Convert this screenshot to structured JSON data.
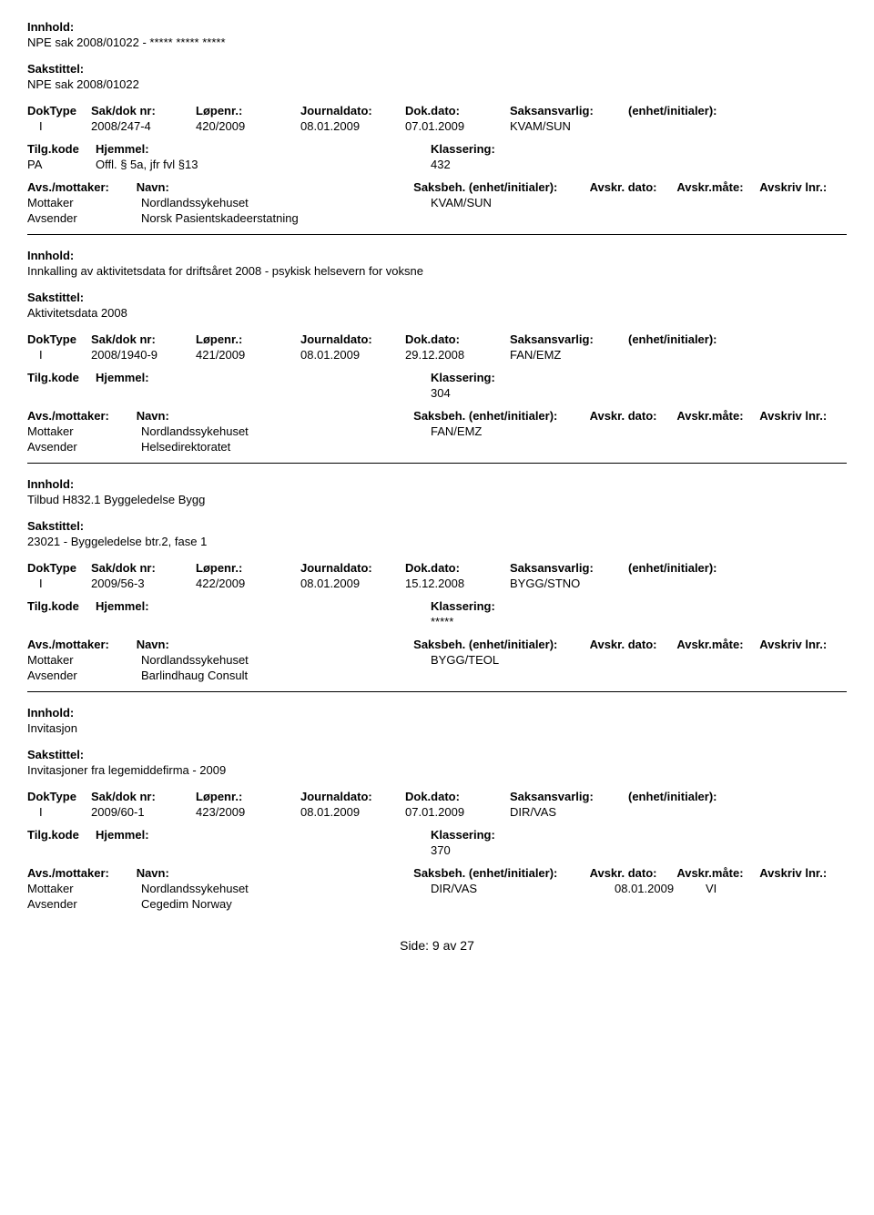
{
  "labels": {
    "innhold": "Innhold:",
    "sakstittel": "Sakstittel:",
    "doktype": "DokType",
    "sakdoknr": "Sak/dok nr:",
    "lopenr": "Løpenr.:",
    "journaldato": "Journaldato:",
    "dokdato": "Dok.dato:",
    "saksansvarlig": "Saksansvarlig:",
    "enhet": "(enhet/initialer):",
    "tilgkode": "Tilg.kode",
    "hjemmel": "Hjemmel:",
    "klassering": "Klassering:",
    "avsmottaker": "Avs./mottaker:",
    "navn": "Navn:",
    "saksbeh": "Saksbeh.",
    "enhetinit": "(enhet/initialer):",
    "avskrdato": "Avskr. dato:",
    "avskrmate": "Avskr.måte:",
    "avskrlnr": "Avskriv lnr.:",
    "mottaker": "Mottaker",
    "avsender": "Avsender",
    "side": "Side:",
    "av": "av"
  },
  "records": [
    {
      "innhold": "NPE sak 2008/01022 - ***** ***** *****",
      "sakstittel": "NPE sak 2008/01022",
      "doktype": "I",
      "sakdoknr": "2008/247-4",
      "lopenr": "420/2009",
      "journaldato": "08.01.2009",
      "dokdato": "07.01.2009",
      "saksansvarlig": "KVAM/SUN",
      "tilgkode": "PA",
      "hjemmel": "Offl. § 5a, jfr fvl §13",
      "klassering": "432",
      "parties": [
        {
          "role": "Mottaker",
          "navn": "Nordlandssykehuset",
          "saksbeh": "KVAM/SUN",
          "avskrdato": "",
          "avskrmate": ""
        },
        {
          "role": "Avsender",
          "navn": "Norsk Pasientskadeerstatning",
          "saksbeh": "",
          "avskrdato": "",
          "avskrmate": ""
        }
      ]
    },
    {
      "innhold": "Innkalling av aktivitetsdata for driftsåret 2008 - psykisk helsevern for voksne",
      "sakstittel": "Aktivitetsdata 2008",
      "doktype": "I",
      "sakdoknr": "2008/1940-9",
      "lopenr": "421/2009",
      "journaldato": "08.01.2009",
      "dokdato": "29.12.2008",
      "saksansvarlig": "FAN/EMZ",
      "tilgkode": "",
      "hjemmel": "",
      "klassering": "304",
      "parties": [
        {
          "role": "Mottaker",
          "navn": "Nordlandssykehuset",
          "saksbeh": "FAN/EMZ",
          "avskrdato": "",
          "avskrmate": ""
        },
        {
          "role": "Avsender",
          "navn": "Helsedirektoratet",
          "saksbeh": "",
          "avskrdato": "",
          "avskrmate": ""
        }
      ]
    },
    {
      "innhold": "Tilbud H832.1 Byggeledelse Bygg",
      "sakstittel": "23021 - Byggeledelse btr.2, fase 1",
      "doktype": "I",
      "sakdoknr": "2009/56-3",
      "lopenr": "422/2009",
      "journaldato": "08.01.2009",
      "dokdato": "15.12.2008",
      "saksansvarlig": "BYGG/STNO",
      "tilgkode": "",
      "hjemmel": "",
      "klassering": "*****",
      "parties": [
        {
          "role": "Mottaker",
          "navn": "Nordlandssykehuset",
          "saksbeh": "BYGG/TEOL",
          "avskrdato": "",
          "avskrmate": ""
        },
        {
          "role": "Avsender",
          "navn": "Barlindhaug Consult",
          "saksbeh": "",
          "avskrdato": "",
          "avskrmate": ""
        }
      ]
    },
    {
      "innhold": "Invitasjon",
      "sakstittel": "Invitasjoner fra legemiddefirma - 2009",
      "doktype": "I",
      "sakdoknr": "2009/60-1",
      "lopenr": "423/2009",
      "journaldato": "08.01.2009",
      "dokdato": "07.01.2009",
      "saksansvarlig": "DIR/VAS",
      "tilgkode": "",
      "hjemmel": "",
      "klassering": "370",
      "parties": [
        {
          "role": "Mottaker",
          "navn": "Nordlandssykehuset",
          "saksbeh": "DIR/VAS",
          "avskrdato": "08.01.2009",
          "avskrmate": "VI"
        },
        {
          "role": "Avsender",
          "navn": "Cegedim Norway",
          "saksbeh": "",
          "avskrdato": "",
          "avskrmate": ""
        }
      ]
    }
  ],
  "page": {
    "current": "9",
    "total": "27"
  }
}
